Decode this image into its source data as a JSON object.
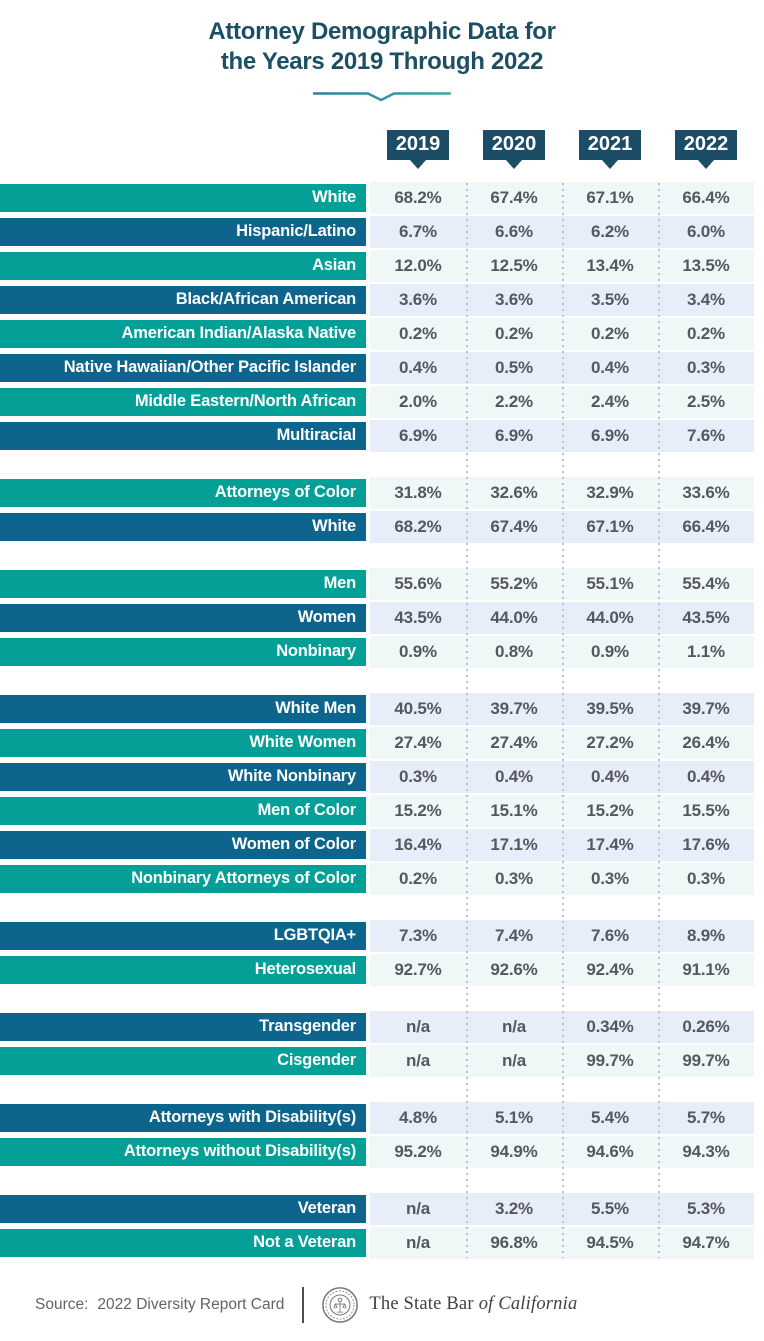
{
  "title": {
    "line1": "Attorney Demographic Data for",
    "line2": "the Years 2019 Through 2022"
  },
  "chart_data": {
    "type": "table",
    "title": "Attorney Demographic Data for the Years 2019 Through 2022",
    "columns": [
      "2019",
      "2020",
      "2021",
      "2022"
    ],
    "groups": [
      {
        "rows": [
          {
            "label": "White",
            "style": "teal",
            "values": [
              "68.2%",
              "67.4%",
              "67.1%",
              "66.4%"
            ]
          },
          {
            "label": "Hispanic/Latino",
            "style": "blue",
            "values": [
              "6.7%",
              "6.6%",
              "6.2%",
              "6.0%"
            ]
          },
          {
            "label": "Asian",
            "style": "teal",
            "values": [
              "12.0%",
              "12.5%",
              "13.4%",
              "13.5%"
            ]
          },
          {
            "label": "Black/African American",
            "style": "blue",
            "values": [
              "3.6%",
              "3.6%",
              "3.5%",
              "3.4%"
            ]
          },
          {
            "label": "American Indian/Alaska Native",
            "style": "teal",
            "values": [
              "0.2%",
              "0.2%",
              "0.2%",
              "0.2%"
            ]
          },
          {
            "label": "Native Hawaiian/Other Pacific Islander",
            "style": "blue",
            "values": [
              "0.4%",
              "0.5%",
              "0.4%",
              "0.3%"
            ]
          },
          {
            "label": "Middle Eastern/North African",
            "style": "teal",
            "values": [
              "2.0%",
              "2.2%",
              "2.4%",
              "2.5%"
            ]
          },
          {
            "label": "Multiracial",
            "style": "blue",
            "values": [
              "6.9%",
              "6.9%",
              "6.9%",
              "7.6%"
            ]
          }
        ]
      },
      {
        "rows": [
          {
            "label": "Attorneys of Color",
            "style": "teal",
            "values": [
              "31.8%",
              "32.6%",
              "32.9%",
              "33.6%"
            ]
          },
          {
            "label": "White",
            "style": "blue",
            "values": [
              "68.2%",
              "67.4%",
              "67.1%",
              "66.4%"
            ]
          }
        ]
      },
      {
        "rows": [
          {
            "label": "Men",
            "style": "teal",
            "values": [
              "55.6%",
              "55.2%",
              "55.1%",
              "55.4%"
            ]
          },
          {
            "label": "Women",
            "style": "blue",
            "values": [
              "43.5%",
              "44.0%",
              "44.0%",
              "43.5%"
            ]
          },
          {
            "label": "Nonbinary",
            "style": "teal",
            "values": [
              "0.9%",
              "0.8%",
              "0.9%",
              "1.1%"
            ]
          }
        ]
      },
      {
        "rows": [
          {
            "label": "White Men",
            "style": "blue",
            "values": [
              "40.5%",
              "39.7%",
              "39.5%",
              "39.7%"
            ]
          },
          {
            "label": "White Women",
            "style": "teal",
            "values": [
              "27.4%",
              "27.4%",
              "27.2%",
              "26.4%"
            ]
          },
          {
            "label": "White Nonbinary",
            "style": "blue",
            "values": [
              "0.3%",
              "0.4%",
              "0.4%",
              "0.4%"
            ]
          },
          {
            "label": "Men of Color",
            "style": "teal",
            "values": [
              "15.2%",
              "15.1%",
              "15.2%",
              "15.5%"
            ]
          },
          {
            "label": "Women of Color",
            "style": "blue",
            "values": [
              "16.4%",
              "17.1%",
              "17.4%",
              "17.6%"
            ]
          },
          {
            "label": "Nonbinary Attorneys of Color",
            "style": "teal",
            "values": [
              "0.2%",
              "0.3%",
              "0.3%",
              "0.3%"
            ]
          }
        ]
      },
      {
        "rows": [
          {
            "label": "LGBTQIA+",
            "style": "blue",
            "values": [
              "7.3%",
              "7.4%",
              "7.6%",
              "8.9%"
            ]
          },
          {
            "label": "Heterosexual",
            "style": "teal",
            "values": [
              "92.7%",
              "92.6%",
              "92.4%",
              "91.1%"
            ]
          }
        ]
      },
      {
        "rows": [
          {
            "label": "Transgender",
            "style": "blue",
            "values": [
              "n/a",
              "n/a",
              "0.34%",
              "0.26%"
            ]
          },
          {
            "label": "Cisgender",
            "style": "teal",
            "values": [
              "n/a",
              "n/a",
              "99.7%",
              "99.7%"
            ]
          }
        ]
      },
      {
        "rows": [
          {
            "label": "Attorneys with Disability(s)",
            "style": "blue",
            "values": [
              "4.8%",
              "5.1%",
              "5.4%",
              "5.7%"
            ]
          },
          {
            "label": "Attorneys without Disability(s)",
            "style": "teal",
            "values": [
              "95.2%",
              "94.9%",
              "94.6%",
              "94.3%"
            ]
          }
        ]
      },
      {
        "rows": [
          {
            "label": "Veteran",
            "style": "blue",
            "values": [
              "n/a",
              "3.2%",
              "5.5%",
              "5.3%"
            ]
          },
          {
            "label": "Not a Veteran",
            "style": "teal",
            "values": [
              "n/a",
              "96.8%",
              "94.5%",
              "94.7%"
            ]
          }
        ]
      }
    ]
  },
  "footer": {
    "source_label": "Source:",
    "source_text": "2022 Diversity Report Card",
    "wordmark_regular": "The State Bar",
    "wordmark_italic": "of California"
  },
  "colors": {
    "navy": "#1C4D66",
    "title_navy": "#1D4F63",
    "teal_bar": "#04A098",
    "blue_bar": "#0D648C",
    "teal_row_bg": "#F0F7F7",
    "blue_row_bg": "#E7EDF9",
    "value_text": "#55585C",
    "separator_dots": "#B8C1CD",
    "accent_gradient_start": "#2C7FA0",
    "accent_gradient_end": "#39A9A6"
  }
}
